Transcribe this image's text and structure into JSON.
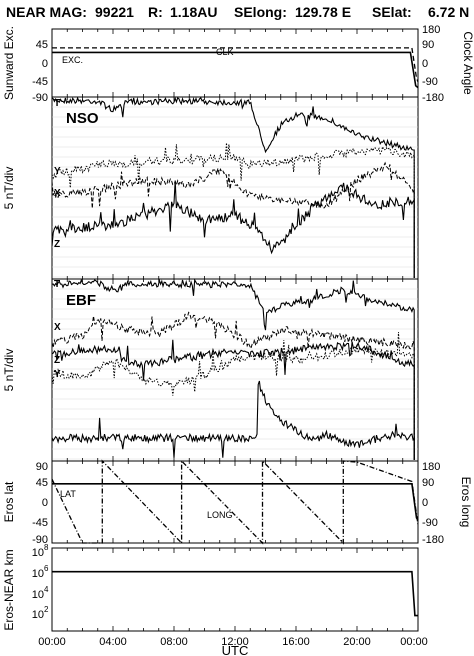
{
  "header": {
    "mission": "NEAR MAG:",
    "doy": "99221",
    "range_label": "R:",
    "range_value": "1.18AU",
    "selong_label": "SElong:",
    "selong_value": "129.78 E",
    "selat_label": "SElat:",
    "selat_value": "6.72 N"
  },
  "xaxis": {
    "label": "UTC",
    "ticks": [
      "00:00",
      "04:00",
      "08:00",
      "12:00",
      "16:00",
      "20:00",
      "00:00"
    ]
  },
  "chart_data": [
    {
      "type": "line",
      "panel": "sunward-clock",
      "ylabel": "Sunward Exc.",
      "ylabel_right": "Clock Angle",
      "ylim": [
        -90,
        90
      ],
      "ylim_right": [
        -180,
        180
      ],
      "yticks": [
        "45",
        "0",
        "-45",
        "-90"
      ],
      "yticks_right": [
        "180",
        "90",
        "0",
        "-90",
        "-180"
      ],
      "top_tick": "90",
      "series": [
        {
          "name": "EXC.",
          "style": "solid",
          "x": [
            0,
            19.9,
            20.4,
            23.5,
            23.85,
            24.0
          ],
          "y": [
            28,
            28,
            28,
            28,
            -60,
            -65
          ]
        },
        {
          "name": "CLK",
          "style": "dashed",
          "x": [
            0,
            19.9,
            20.4,
            23.6,
            23.9,
            24.0
          ],
          "y": [
            40,
            40,
            40,
            40,
            -40,
            -50
          ]
        }
      ]
    },
    {
      "type": "line",
      "panel": "NSO",
      "title": "NSO",
      "ylabel": "5 nT/div",
      "trace_labels": [
        "T",
        "Y",
        "X",
        "Z"
      ]
    },
    {
      "type": "line",
      "panel": "EBF",
      "title": "EBF",
      "ylabel": "5 nT/div",
      "trace_labels": [
        "T",
        "X",
        "Z",
        "Y"
      ]
    },
    {
      "type": "line",
      "panel": "eros-lat-long",
      "ylabel": "Eros lat",
      "ylabel_right": "Eros long",
      "ylim": [
        -90,
        90
      ],
      "ylim_right": [
        -180,
        180
      ],
      "yticks": [
        "90",
        "45",
        "0",
        "-45",
        "-90"
      ],
      "yticks_right": [
        "180",
        "90",
        "0",
        "-90",
        "-180"
      ],
      "series": [
        {
          "name": "LAT",
          "style": "solid",
          "x": [
            0,
            19.9,
            20.4,
            23.6,
            23.9,
            24.0
          ],
          "y": [
            40,
            40,
            40,
            40,
            -35,
            -40
          ]
        },
        {
          "name": "LONG",
          "style": "dashed",
          "x": [
            0,
            2,
            3.3,
            3.3,
            8.5,
            8.5,
            13.8,
            13.8,
            19.1,
            19.1,
            20,
            23.6,
            24.0
          ],
          "y_right": [
            100,
            -180,
            -180,
            180,
            -180,
            180,
            -180,
            180,
            -180,
            180,
            175,
            90,
            -100
          ]
        }
      ]
    },
    {
      "type": "line",
      "panel": "eros-near-distance",
      "ylabel": "Eros-NEAR km",
      "yscale": "log",
      "ylim": [
        10,
        100000000
      ],
      "yticks": [
        "10",
        "10",
        "10",
        "10"
      ],
      "yticks_exp": [
        "8",
        "6",
        "4",
        "2"
      ],
      "series": [
        {
          "name": "",
          "style": "solid",
          "x": [
            0,
            19.9,
            20.4,
            23.6,
            23.8,
            24.0
          ],
          "y": [
            1000000,
            1000000,
            1000000,
            1000000,
            200,
            200
          ]
        }
      ]
    }
  ]
}
